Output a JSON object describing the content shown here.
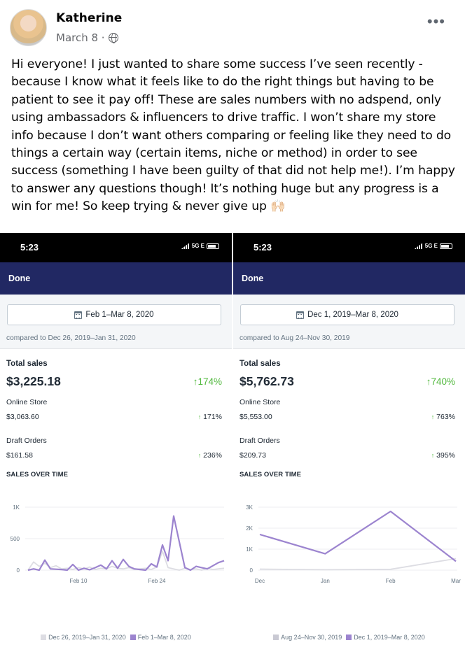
{
  "post": {
    "author": "Katherine",
    "date": "March 8 ·",
    "text": "Hi everyone! I just wanted to share some success I’ve seen recently - because I know what it feels like to do the right things but having to be patient to see it pay off! These are sales numbers with no adspend, only using ambassadors & influencers to drive traffic. I won’t share my store info because I don’t want others comparing or feeling like they need to do things a certain way (certain items, niche or method) in order to see success (something I have been guilty of that did not help me!). I’m happy to answer any questions though! It’s nothing huge but any progress is a win for me! So keep trying & never give up 🙌🏻",
    "icons": {
      "privacy": "globe-icon",
      "menu": "more-options-icon"
    }
  },
  "screenshots": [
    {
      "status_time": "5:23",
      "network": "5G E",
      "done_label": "Done",
      "date_range": "Feb 1–Mar 8, 2020",
      "compared": "compared to Dec 26, 2019–Jan 31, 2020",
      "total_label": "Total sales",
      "total_value": "$3,225.18",
      "total_change": "↑174%",
      "online_label": "Online Store",
      "online_value": "$3,063.60",
      "online_change": "171%",
      "draft_label": "Draft Orders",
      "draft_value": "$161.58",
      "draft_change": "236%",
      "sales_over_time": "SALES OVER TIME",
      "legend_prev": "Dec 26, 2019–Jan 31, 2020",
      "legend_curr": "Feb 1–Mar 8, 2020"
    },
    {
      "status_time": "5:23",
      "network": "5G E",
      "done_label": "Done",
      "date_range": "Dec 1, 2019–Mar 8, 2020",
      "compared": "compared to Aug 24–Nov 30, 2019",
      "total_label": "Total sales",
      "total_value": "$5,762.73",
      "total_change": "↑740%",
      "online_label": "Online Store",
      "online_value": "$5,553.00",
      "online_change": "763%",
      "draft_label": "Draft Orders",
      "draft_value": "$209.73",
      "draft_change": "395%",
      "sales_over_time": "SALES OVER TIME",
      "legend_prev": "Aug 24–Nov 30, 2019",
      "legend_curr": "Dec 1, 2019–Mar 8, 2020"
    }
  ],
  "colors": {
    "navbar": "#212863",
    "current_series": "#9c84cf",
    "previous_series": "#dddde3",
    "positive": "#50b83c"
  },
  "chart_data": [
    {
      "type": "line",
      "title": "SALES OVER TIME",
      "ylim": [
        0,
        1000
      ],
      "yticks": [
        "0",
        "500",
        "1K"
      ],
      "yticks_values": [
        0,
        500,
        1000
      ],
      "xticks": [
        "Feb 10",
        "Feb 24"
      ],
      "xticks_index": [
        9,
        23
      ],
      "series": [
        {
          "name": "Feb 1–Mar 8, 2020",
          "values": [
            0,
            20,
            0,
            160,
            20,
            15,
            10,
            0,
            90,
            0,
            30,
            5,
            40,
            80,
            20,
            150,
            30,
            170,
            60,
            20,
            10,
            0,
            100,
            50,
            400,
            150,
            860,
            450,
            40,
            0,
            60,
            40,
            20,
            70,
            120,
            150
          ]
        },
        {
          "name": "Dec 26, 2019–Jan 31, 2020",
          "values": [
            0,
            130,
            60,
            110,
            40,
            70,
            20,
            30,
            10,
            40,
            20,
            50,
            10,
            30,
            20,
            60,
            30,
            20,
            40,
            10,
            20,
            30,
            10,
            50,
            300,
            40,
            20,
            0,
            30,
            10,
            20,
            0,
            30,
            10,
            20,
            30
          ]
        }
      ]
    },
    {
      "type": "line",
      "title": "SALES OVER TIME",
      "ylim": [
        0,
        3000
      ],
      "yticks": [
        "0",
        "1K",
        "2K",
        "3K"
      ],
      "yticks_values": [
        0,
        1000,
        2000,
        3000
      ],
      "categories": [
        "Dec",
        "Jan",
        "Feb",
        "Mar"
      ],
      "series": [
        {
          "name": "Dec 1, 2019–Mar 8, 2020",
          "values": [
            1700,
            780,
            2800,
            420
          ]
        },
        {
          "name": "Aug 24–Nov 30, 2019",
          "values": [
            50,
            20,
            40,
            550
          ]
        }
      ]
    }
  ]
}
